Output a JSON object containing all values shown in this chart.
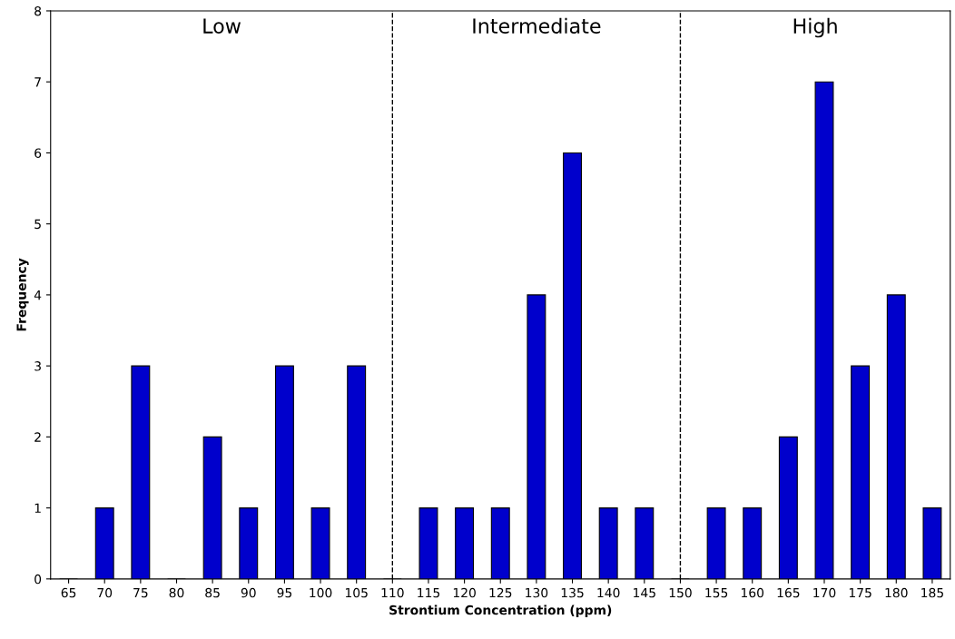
{
  "chart_data": {
    "type": "bar",
    "xlabel": "Strontium Concentration (ppm)",
    "ylabel": "Frequency",
    "categories": [
      "65",
      "70",
      "75",
      "80",
      "85",
      "90",
      "95",
      "100",
      "105",
      "110",
      "115",
      "120",
      "125",
      "130",
      "135",
      "140",
      "145",
      "150",
      "155",
      "160",
      "165",
      "170",
      "175",
      "180",
      "185"
    ],
    "values": [
      0,
      1,
      3,
      0,
      2,
      1,
      3,
      1,
      3,
      0,
      1,
      1,
      1,
      4,
      6,
      1,
      1,
      0,
      1,
      1,
      2,
      7,
      3,
      4,
      1
    ],
    "color": "#0000cc",
    "ylim": [
      0,
      8
    ],
    "yticks": [
      0,
      1,
      2,
      3,
      4,
      5,
      6,
      7,
      8
    ],
    "grid": false,
    "legend": false,
    "ref_lines": [
      {
        "axis": "x",
        "value": "110",
        "color": "#000000",
        "line_style": "dashed"
      },
      {
        "axis": "x",
        "value": "150",
        "color": "#000000",
        "line_style": "dashed"
      }
    ],
    "annotations": [
      "Low",
      "Intermediate",
      "High"
    ]
  }
}
